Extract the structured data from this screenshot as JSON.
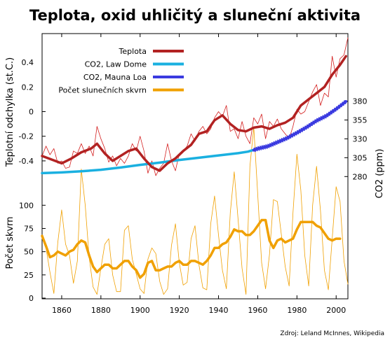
{
  "chart_data": {
    "type": "line",
    "title": "Teplota, oxid uhličitý a sluneční aktivita",
    "source": "Zdroj: Leland McInnes, Wikipedia",
    "x_ticks": [
      "1860",
      "1880",
      "1900",
      "1920",
      "1940",
      "1960",
      "1980",
      "2000"
    ],
    "x_range": [
      1850,
      2006
    ],
    "panels": {
      "temperature": {
        "ylabel": "Teplotní odchylka (st.C.)",
        "y_ticks": [
          "0.4",
          "0.2",
          "0",
          "-0.2",
          "-0.4"
        ],
        "ylim": [
          -0.6,
          0.6
        ]
      },
      "co2": {
        "ylabel": "CO2 (ppm)",
        "y_ticks": [
          "380",
          "355",
          "330",
          "305",
          "280"
        ],
        "ylim": [
          230,
          400
        ]
      },
      "sunspots": {
        "ylabel": "Počet skvrn",
        "y_ticks": [
          "100",
          "75",
          "50",
          "25",
          "0"
        ],
        "ylim": [
          0,
          110
        ]
      }
    },
    "legend": {
      "position": "top-center"
    },
    "series": [
      {
        "name": "Teplota",
        "color": "#b22222",
        "style": "smoothed",
        "x": [
          1850,
          1855,
          1860,
          1865,
          1870,
          1875,
          1878,
          1882,
          1886,
          1890,
          1894,
          1898,
          1902,
          1906,
          1910,
          1914,
          1918,
          1922,
          1926,
          1930,
          1934,
          1938,
          1942,
          1946,
          1950,
          1954,
          1958,
          1962,
          1966,
          1970,
          1974,
          1978,
          1982,
          1986,
          1990,
          1994,
          1998,
          2002,
          2005
        ],
        "values": [
          -0.36,
          -0.39,
          -0.42,
          -0.38,
          -0.33,
          -0.3,
          -0.26,
          -0.34,
          -0.4,
          -0.36,
          -0.32,
          -0.3,
          -0.38,
          -0.45,
          -0.48,
          -0.42,
          -0.38,
          -0.32,
          -0.27,
          -0.18,
          -0.16,
          -0.07,
          -0.03,
          -0.1,
          -0.15,
          -0.16,
          -0.13,
          -0.12,
          -0.14,
          -0.11,
          -0.09,
          -0.05,
          0.05,
          0.1,
          0.15,
          0.2,
          0.3,
          0.38,
          0.45
        ]
      },
      {
        "name": "Teplota (annual)",
        "color": "#d42020",
        "style": "annual",
        "x": [
          1850,
          1852,
          1854,
          1856,
          1858,
          1860,
          1862,
          1864,
          1866,
          1868,
          1870,
          1872,
          1874,
          1876,
          1878,
          1880,
          1882,
          1884,
          1886,
          1888,
          1890,
          1892,
          1894,
          1896,
          1898,
          1900,
          1902,
          1904,
          1906,
          1908,
          1910,
          1912,
          1914,
          1916,
          1918,
          1920,
          1922,
          1924,
          1926,
          1928,
          1930,
          1932,
          1934,
          1936,
          1938,
          1940,
          1942,
          1944,
          1946,
          1948,
          1950,
          1952,
          1954,
          1956,
          1958,
          1960,
          1962,
          1964,
          1966,
          1968,
          1970,
          1972,
          1974,
          1976,
          1978,
          1980,
          1982,
          1984,
          1986,
          1988,
          1990,
          1992,
          1994,
          1996,
          1998,
          2000,
          2002,
          2004,
          2006
        ],
        "values": [
          -0.36,
          -0.28,
          -0.35,
          -0.3,
          -0.42,
          -0.4,
          -0.46,
          -0.45,
          -0.32,
          -0.34,
          -0.26,
          -0.34,
          -0.28,
          -0.36,
          -0.12,
          -0.22,
          -0.3,
          -0.41,
          -0.36,
          -0.44,
          -0.38,
          -0.42,
          -0.36,
          -0.26,
          -0.32,
          -0.2,
          -0.32,
          -0.5,
          -0.4,
          -0.52,
          -0.46,
          -0.42,
          -0.26,
          -0.4,
          -0.48,
          -0.34,
          -0.32,
          -0.28,
          -0.18,
          -0.24,
          -0.16,
          -0.12,
          -0.18,
          -0.14,
          -0.05,
          0.0,
          -0.04,
          0.05,
          -0.16,
          -0.14,
          -0.22,
          -0.08,
          -0.2,
          -0.26,
          -0.05,
          -0.1,
          -0.02,
          -0.22,
          -0.08,
          -0.12,
          -0.06,
          -0.14,
          -0.18,
          -0.22,
          -0.12,
          0.02,
          -0.02,
          0.0,
          0.08,
          0.16,
          0.22,
          0.05,
          0.15,
          0.12,
          0.45,
          0.28,
          0.43,
          0.46,
          0.6
        ]
      },
      {
        "name": "CO2, Law Dome",
        "color": "#1ab0e0",
        "x": [
          1850,
          1860,
          1870,
          1880,
          1890,
          1900,
          1910,
          1920,
          1930,
          1940,
          1950,
          1955,
          1960
        ],
        "values": [
          284.5,
          285.5,
          287,
          289,
          292,
          295.5,
          298.5,
          302,
          305,
          308,
          311,
          313,
          317
        ]
      },
      {
        "name": "CO2, Mauna Loa",
        "color": "#3a3ae0",
        "x": [
          1958,
          1960,
          1965,
          1970,
          1975,
          1980,
          1985,
          1990,
          1995,
          2000,
          2005
        ],
        "values": [
          315,
          317,
          320,
          325.5,
          331,
          338,
          345.5,
          354,
          360.5,
          369.5,
          379.5
        ]
      },
      {
        "name": "Počet slunečních skvrn",
        "color": "#f0a000",
        "style": "smoothed",
        "x": [
          1850,
          1852,
          1854,
          1856,
          1858,
          1860,
          1862,
          1864,
          1866,
          1868,
          1870,
          1872,
          1874,
          1876,
          1878,
          1880,
          1882,
          1884,
          1886,
          1888,
          1890,
          1892,
          1894,
          1896,
          1898,
          1900,
          1902,
          1904,
          1906,
          1908,
          1910,
          1912,
          1914,
          1916,
          1918,
          1920,
          1922,
          1924,
          1926,
          1928,
          1930,
          1932,
          1934,
          1936,
          1938,
          1940,
          1942,
          1944,
          1946,
          1948,
          1950,
          1952,
          1954,
          1956,
          1958,
          1960,
          1962,
          1964,
          1966,
          1968,
          1970,
          1972,
          1974,
          1976,
          1978,
          1980,
          1982,
          1984,
          1986,
          1988,
          1990,
          1992,
          1994,
          1996,
          1998,
          2000,
          2002
        ],
        "values": [
          67,
          56,
          44,
          46,
          50,
          48,
          46,
          50,
          52,
          58,
          62,
          60,
          46,
          34,
          28,
          32,
          36,
          36,
          32,
          32,
          36,
          40,
          40,
          34,
          30,
          22,
          26,
          38,
          40,
          30,
          30,
          32,
          34,
          34,
          38,
          40,
          36,
          36,
          40,
          40,
          38,
          36,
          40,
          46,
          54,
          54,
          58,
          60,
          66,
          74,
          72,
          72,
          68,
          68,
          72,
          78,
          84,
          84,
          62,
          54,
          62,
          64,
          60,
          62,
          64,
          74,
          82,
          82,
          82,
          82,
          78,
          76,
          70,
          64,
          62,
          64,
          64
        ]
      },
      {
        "name": "Počet slunečních skvrn (annual)",
        "color": "#f0a000",
        "style": "annual",
        "x": [
          1850,
          1852,
          1854,
          1856,
          1858,
          1860,
          1862,
          1864,
          1866,
          1868,
          1870,
          1872,
          1874,
          1876,
          1878,
          1880,
          1882,
          1884,
          1886,
          1888,
          1890,
          1892,
          1894,
          1896,
          1898,
          1900,
          1902,
          1904,
          1906,
          1908,
          1910,
          1912,
          1914,
          1916,
          1918,
          1920,
          1922,
          1924,
          1926,
          1928,
          1930,
          1932,
          1934,
          1936,
          1938,
          1940,
          1942,
          1944,
          1946,
          1948,
          1950,
          1952,
          1954,
          1956,
          1958,
          1960,
          1962,
          1964,
          1966,
          1968,
          1970,
          1972,
          1974,
          1976,
          1978,
          1980,
          1982,
          1984,
          1986,
          1988,
          1990,
          1992,
          1994,
          1996,
          1998,
          2000,
          2002,
          2004,
          2006
        ],
        "values": [
          66,
          54,
          28,
          5,
          60,
          95,
          58,
          46,
          16,
          40,
          139,
          100,
          44,
          12,
          4,
          32,
          58,
          64,
          25,
          7,
          7,
          73,
          78,
          42,
          26,
          10,
          5,
          42,
          54,
          48,
          18,
          4,
          10,
          57,
          80,
          38,
          14,
          17,
          64,
          78,
          36,
          11,
          9,
          80,
          110,
          68,
          30,
          10,
          92,
          136,
          84,
          32,
          4,
          142,
          184,
          112,
          38,
          10,
          47,
          106,
          104,
          69,
          34,
          13,
          92,
          155,
          116,
          46,
          13,
          100,
          142,
          94,
          30,
          9,
          64,
          120,
          104,
          40,
          15
        ]
      }
    ]
  }
}
